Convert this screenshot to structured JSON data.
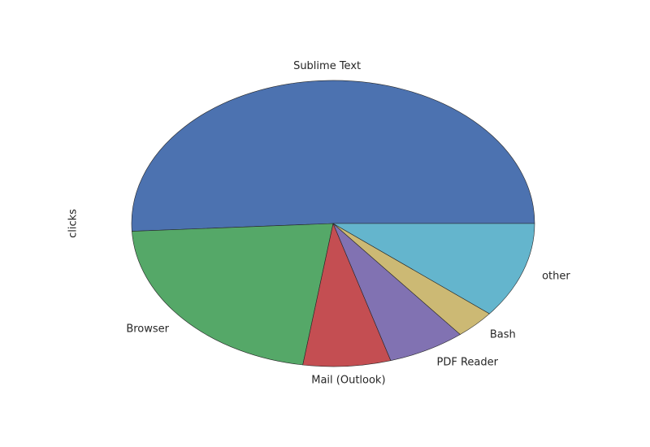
{
  "chart_data": {
    "type": "pie",
    "title": "",
    "ylabel": "clicks",
    "categories": [
      "Sublime Text",
      "Browser",
      "Mail (Outlook)",
      "PDF Reader",
      "Bash",
      "other"
    ],
    "values": [
      52.9,
      22.6,
      7.3,
      6.5,
      3.4,
      11.3
    ],
    "colors": [
      "#4c72b0",
      "#55a868",
      "#c44e52",
      "#8172b2",
      "#ccb974",
      "#64b5cd"
    ],
    "start_angle_deg": 0,
    "direction": "counterclockwise",
    "legend": "none"
  }
}
